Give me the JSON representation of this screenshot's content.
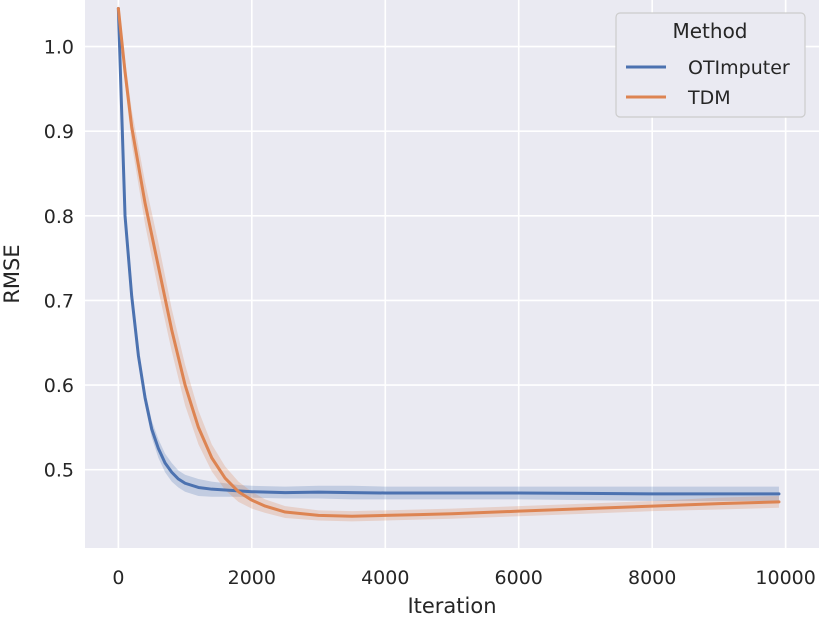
{
  "chart_data": {
    "type": "line",
    "xlabel": "Iteration",
    "ylabel": "RMSE",
    "xlim": [
      -500,
      10500
    ],
    "ylim": [
      0.4075,
      1.055
    ],
    "x_ticks": [
      0,
      2000,
      4000,
      6000,
      8000,
      10000
    ],
    "y_ticks": [
      0.5,
      0.6,
      0.7,
      0.8,
      0.9,
      1.0
    ],
    "x_tick_labels": [
      "0",
      "2000",
      "4000",
      "6000",
      "8000",
      "10000"
    ],
    "y_tick_labels": [
      "0.5",
      "0.6",
      "0.7",
      "0.8",
      "0.9",
      "1.0"
    ],
    "grid": true,
    "legend": {
      "title": "Method",
      "position": "top-right"
    },
    "series": [
      {
        "name": "OTImputer",
        "color": "#4c72b0",
        "x": [
          0,
          100,
          200,
          300,
          400,
          500,
          600,
          700,
          800,
          900,
          1000,
          1200,
          1400,
          1600,
          1800,
          2000,
          2500,
          3000,
          3500,
          4000,
          5000,
          6000,
          7000,
          8000,
          9000,
          9900
        ],
        "y": [
          1.045,
          0.8,
          0.705,
          0.635,
          0.585,
          0.548,
          0.525,
          0.508,
          0.497,
          0.489,
          0.484,
          0.479,
          0.477,
          0.476,
          0.475,
          0.474,
          0.473,
          0.4735,
          0.473,
          0.4725,
          0.4725,
          0.4725,
          0.472,
          0.4715,
          0.4715,
          0.4715
        ],
        "lower": [
          1.04,
          0.795,
          0.698,
          0.627,
          0.576,
          0.538,
          0.514,
          0.497,
          0.486,
          0.479,
          0.474,
          0.469,
          0.468,
          0.468,
          0.468,
          0.467,
          0.466,
          0.466,
          0.465,
          0.465,
          0.465,
          0.465,
          0.464,
          0.463,
          0.463,
          0.463
        ],
        "upper": [
          1.05,
          0.805,
          0.712,
          0.643,
          0.594,
          0.558,
          0.536,
          0.519,
          0.508,
          0.499,
          0.494,
          0.489,
          0.486,
          0.484,
          0.482,
          0.481,
          0.48,
          0.481,
          0.481,
          0.48,
          0.48,
          0.48,
          0.48,
          0.48,
          0.48,
          0.48
        ]
      },
      {
        "name": "TDM",
        "color": "#dd8452",
        "x": [
          0,
          100,
          200,
          400,
          600,
          800,
          1000,
          1200,
          1400,
          1600,
          1800,
          2000,
          2200,
          2500,
          3000,
          3500,
          4000,
          4500,
          5000,
          6000,
          7000,
          8000,
          9000,
          9900
        ],
        "y": [
          1.045,
          0.97,
          0.905,
          0.815,
          0.74,
          0.665,
          0.6,
          0.55,
          0.514,
          0.49,
          0.474,
          0.464,
          0.457,
          0.45,
          0.446,
          0.445,
          0.446,
          0.447,
          0.448,
          0.451,
          0.454,
          0.457,
          0.46,
          0.462
        ],
        "lower": [
          1.04,
          0.955,
          0.885,
          0.79,
          0.712,
          0.64,
          0.576,
          0.53,
          0.498,
          0.476,
          0.462,
          0.454,
          0.449,
          0.443,
          0.44,
          0.439,
          0.44,
          0.441,
          0.442,
          0.445,
          0.448,
          0.451,
          0.453,
          0.455
        ],
        "upper": [
          1.05,
          0.985,
          0.925,
          0.84,
          0.768,
          0.69,
          0.624,
          0.57,
          0.53,
          0.504,
          0.486,
          0.474,
          0.465,
          0.457,
          0.452,
          0.451,
          0.452,
          0.453,
          0.454,
          0.457,
          0.46,
          0.463,
          0.467,
          0.469
        ]
      }
    ]
  }
}
